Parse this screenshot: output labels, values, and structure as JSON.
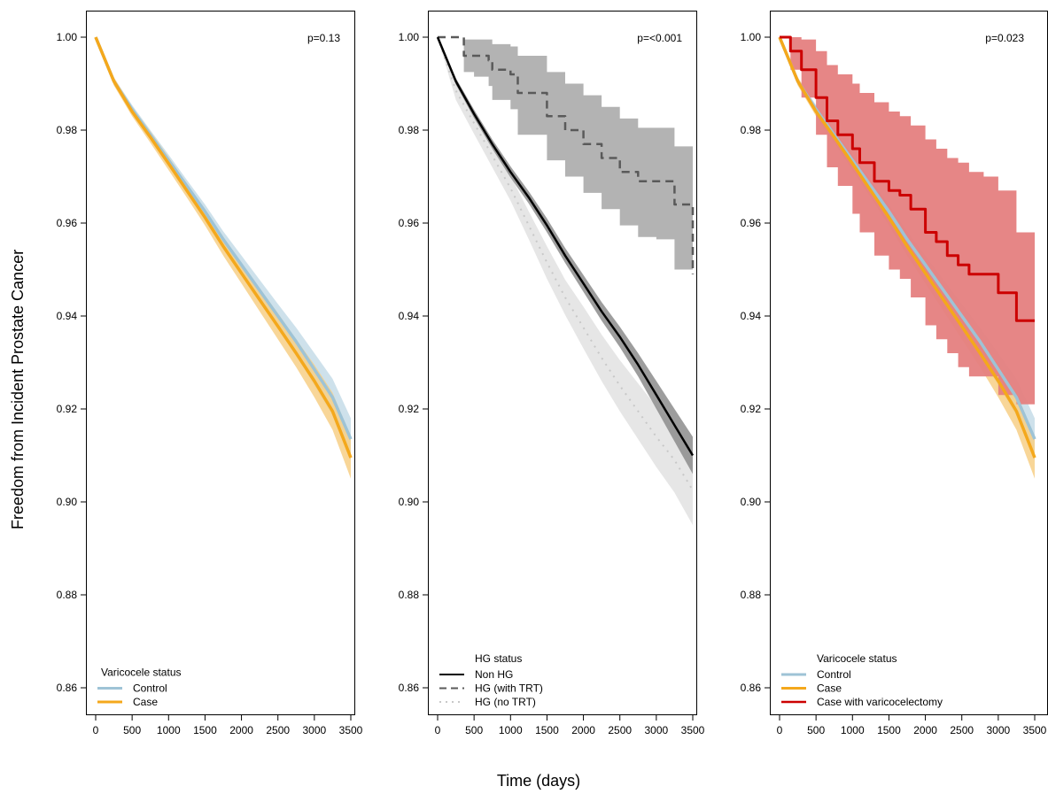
{
  "figure": {
    "ylabel": "Freedom from Incident Prostate Cancer",
    "xlabel": "Time (days)"
  },
  "colors": {
    "control": "#9ec3d6",
    "control_band": "#c5dce7",
    "case": "#f4a81c",
    "case_band": "#f7cf86",
    "non_hg": "#000000",
    "non_hg_band": "#8c8c8c",
    "hg_trt": "#5a5a5a",
    "hg_trt_band": "#a6a6a6",
    "hg_no_trt": "#c8c8c8",
    "hg_no_trt_band": "#e2e2e2",
    "varicocelectomy": "#cc0000",
    "varicocelectomy_band": "#e57f7f"
  },
  "chart_data": [
    {
      "type": "line",
      "annotation": "p=0.13",
      "legend_title": "Varicocele status",
      "legend_position": "bottom-left",
      "xlim": [
        0,
        3500
      ],
      "ylim": [
        0.86,
        1.0
      ],
      "x_ticks": [
        "0",
        "500",
        "1000",
        "1500",
        "2000",
        "2500",
        "3000",
        "3500"
      ],
      "y_ticks": [
        "0.86",
        "0.88",
        "0.90",
        "0.92",
        "0.94",
        "0.96",
        "0.98",
        "1.00"
      ],
      "series": [
        {
          "name": "Control",
          "color_key": "control",
          "dash": "solid",
          "width": 3.5,
          "x": [
            0,
            250,
            500,
            750,
            1000,
            1250,
            1500,
            1750,
            2000,
            2250,
            2500,
            2750,
            3000,
            3250,
            3500
          ],
          "y": [
            1.0,
            0.9905,
            0.9845,
            0.979,
            0.9735,
            0.968,
            0.9625,
            0.9565,
            0.951,
            0.9455,
            0.94,
            0.9345,
            0.9285,
            0.9225,
            0.9135
          ],
          "lower": [
            1.0,
            0.9897,
            0.9836,
            0.978,
            0.9723,
            0.9667,
            0.961,
            0.9548,
            0.949,
            0.9432,
            0.9374,
            0.9315,
            0.925,
            0.9185,
            0.909
          ],
          "upper": [
            1.0,
            0.9913,
            0.9854,
            0.98,
            0.9747,
            0.9693,
            0.964,
            0.9582,
            0.953,
            0.9478,
            0.9426,
            0.9375,
            0.932,
            0.9265,
            0.918
          ]
        },
        {
          "name": "Case",
          "color_key": "case",
          "dash": "solid",
          "width": 3.5,
          "x": [
            0,
            250,
            500,
            750,
            1000,
            1250,
            1500,
            1750,
            2000,
            2250,
            2500,
            2750,
            3000,
            3250,
            3500
          ],
          "y": [
            1.0,
            0.9905,
            0.984,
            0.9785,
            0.9728,
            0.967,
            0.9612,
            0.955,
            0.9492,
            0.9435,
            0.9378,
            0.932,
            0.926,
            0.9195,
            0.9095
          ],
          "lower": [
            1.0,
            0.9896,
            0.983,
            0.9773,
            0.9714,
            0.9655,
            0.9595,
            0.953,
            0.947,
            0.941,
            0.935,
            0.929,
            0.9225,
            0.9155,
            0.905
          ],
          "upper": [
            1.0,
            0.9914,
            0.985,
            0.9797,
            0.9742,
            0.9685,
            0.9629,
            0.957,
            0.9514,
            0.946,
            0.9406,
            0.935,
            0.9295,
            0.9235,
            0.914
          ]
        }
      ]
    },
    {
      "type": "line",
      "annotation": "p=<0.001",
      "legend_title": "HG status",
      "legend_position": "bottom-left",
      "xlim": [
        0,
        3500
      ],
      "ylim": [
        0.86,
        1.0
      ],
      "x_ticks": [
        "0",
        "500",
        "1000",
        "1500",
        "2000",
        "2500",
        "3000",
        "3500"
      ],
      "y_ticks": [
        "0.86",
        "0.88",
        "0.90",
        "0.92",
        "0.94",
        "0.96",
        "0.98",
        "1.00"
      ],
      "series": [
        {
          "name": "HG (no TRT)",
          "color_key": "hg_no_trt",
          "dash": "dotted",
          "width": 2,
          "x": [
            0,
            250,
            500,
            750,
            1000,
            1250,
            1500,
            1750,
            2000,
            2250,
            2500,
            2750,
            3000,
            3250,
            3500
          ],
          "y": [
            1.0,
            0.9885,
            0.9815,
            0.9745,
            0.9675,
            0.9595,
            0.9515,
            0.944,
            0.9375,
            0.931,
            0.925,
            0.9195,
            0.914,
            0.909,
            0.9025
          ],
          "lower": [
            1.0,
            0.9865,
            0.9792,
            0.972,
            0.9648,
            0.9565,
            0.948,
            0.9402,
            0.933,
            0.926,
            0.9195,
            0.9135,
            0.9075,
            0.902,
            0.895
          ],
          "upper": [
            1.0,
            0.9905,
            0.9838,
            0.977,
            0.9702,
            0.9625,
            0.955,
            0.9478,
            0.942,
            0.936,
            0.9305,
            0.9255,
            0.9205,
            0.916,
            0.91
          ]
        },
        {
          "name": "HG (with TRT)",
          "color_key": "hg_trt",
          "dash": "dashed",
          "width": 2.5,
          "x": [
            0,
            300,
            360,
            500,
            700,
            750,
            1000,
            1100,
            1500,
            1750,
            2000,
            2250,
            2500,
            2750,
            3000,
            3250,
            3500
          ],
          "y": [
            1.0,
            1.0,
            0.996,
            0.996,
            0.995,
            0.993,
            0.992,
            0.988,
            0.983,
            0.98,
            0.977,
            0.974,
            0.971,
            0.969,
            0.969,
            0.964,
            0.949
          ],
          "lower": [
            1.0,
            1.0,
            0.9925,
            0.9915,
            0.9895,
            0.9865,
            0.9845,
            0.979,
            0.9735,
            0.97,
            0.9665,
            0.963,
            0.9595,
            0.957,
            0.9565,
            0.95,
            0.9375
          ],
          "upper": [
            1.0,
            1.0,
            0.9995,
            0.9995,
            0.9995,
            0.9985,
            0.998,
            0.996,
            0.9925,
            0.99,
            0.9875,
            0.985,
            0.9825,
            0.9805,
            0.9805,
            0.9765,
            0.9615
          ]
        },
        {
          "name": "Non HG",
          "color_key": "non_hg",
          "dash": "solid",
          "width": 2.5,
          "x": [
            0,
            250,
            500,
            750,
            1000,
            1250,
            1500,
            1750,
            2000,
            2250,
            2500,
            2750,
            3000,
            3250,
            3500
          ],
          "y": [
            1.0,
            0.9905,
            0.9835,
            0.977,
            0.971,
            0.9655,
            0.9595,
            0.953,
            0.947,
            0.941,
            0.9355,
            0.9295,
            0.923,
            0.9165,
            0.91
          ],
          "lower": [
            1.0,
            0.9898,
            0.9826,
            0.976,
            0.9698,
            0.9642,
            0.958,
            0.9514,
            0.9452,
            0.939,
            0.9333,
            0.927,
            0.92,
            0.913,
            0.906
          ],
          "upper": [
            1.0,
            0.9912,
            0.9844,
            0.978,
            0.9722,
            0.9668,
            0.961,
            0.9546,
            0.9488,
            0.943,
            0.9377,
            0.932,
            0.926,
            0.92,
            0.914
          ]
        }
      ]
    },
    {
      "type": "line",
      "annotation": "p=0.023",
      "legend_title": "Varicocele status",
      "legend_position": "bottom-left",
      "xlim": [
        0,
        3500
      ],
      "ylim": [
        0.86,
        1.0
      ],
      "x_ticks": [
        "0",
        "500",
        "1000",
        "1500",
        "2000",
        "2500",
        "3000",
        "3500"
      ],
      "y_ticks": [
        "0.86",
        "0.88",
        "0.90",
        "0.92",
        "0.94",
        "0.96",
        "0.98",
        "1.00"
      ],
      "series": [
        {
          "name": "Control",
          "color_key": "control",
          "dash": "solid",
          "width": 3.5,
          "x": [
            0,
            250,
            500,
            750,
            1000,
            1250,
            1500,
            1750,
            2000,
            2250,
            2500,
            2750,
            3000,
            3250,
            3500
          ],
          "y": [
            1.0,
            0.9905,
            0.9845,
            0.979,
            0.9735,
            0.968,
            0.9625,
            0.9565,
            0.951,
            0.9455,
            0.94,
            0.9345,
            0.9285,
            0.9225,
            0.9135
          ],
          "lower": [
            1.0,
            0.9897,
            0.9836,
            0.978,
            0.9723,
            0.9667,
            0.961,
            0.9548,
            0.949,
            0.9432,
            0.9374,
            0.9315,
            0.925,
            0.9185,
            0.909
          ],
          "upper": [
            1.0,
            0.9913,
            0.9854,
            0.98,
            0.9747,
            0.9693,
            0.964,
            0.9582,
            0.953,
            0.9478,
            0.9426,
            0.9375,
            0.932,
            0.9265,
            0.918
          ]
        },
        {
          "name": "Case",
          "color_key": "case",
          "dash": "solid",
          "width": 3.5,
          "x": [
            0,
            250,
            500,
            750,
            1000,
            1250,
            1500,
            1750,
            2000,
            2250,
            2500,
            2750,
            3000,
            3250,
            3500
          ],
          "y": [
            1.0,
            0.9905,
            0.984,
            0.9785,
            0.9728,
            0.967,
            0.9612,
            0.955,
            0.9492,
            0.9435,
            0.9378,
            0.932,
            0.926,
            0.9195,
            0.9095
          ],
          "lower": [
            1.0,
            0.9896,
            0.983,
            0.9773,
            0.9714,
            0.9655,
            0.9595,
            0.953,
            0.947,
            0.941,
            0.935,
            0.929,
            0.9225,
            0.9155,
            0.905
          ],
          "upper": [
            1.0,
            0.9914,
            0.985,
            0.9797,
            0.9742,
            0.9685,
            0.9629,
            0.957,
            0.9514,
            0.946,
            0.9406,
            0.935,
            0.9295,
            0.9235,
            0.914
          ]
        },
        {
          "name": "Case with varicocelectomy",
          "color_key": "varicocelectomy",
          "dash": "solid",
          "width": 3,
          "x": [
            0,
            150,
            300,
            500,
            650,
            800,
            1000,
            1100,
            1300,
            1500,
            1650,
            1800,
            2000,
            2150,
            2300,
            2450,
            2600,
            2800,
            3000,
            3250,
            3500
          ],
          "y": [
            1.0,
            0.997,
            0.993,
            0.987,
            0.982,
            0.979,
            0.976,
            0.973,
            0.969,
            0.967,
            0.966,
            0.963,
            0.958,
            0.956,
            0.953,
            0.951,
            0.949,
            0.949,
            0.945,
            0.939,
            0.939
          ],
          "lower": [
            1.0,
            0.993,
            0.987,
            0.979,
            0.972,
            0.968,
            0.962,
            0.958,
            0.953,
            0.95,
            0.948,
            0.944,
            0.938,
            0.935,
            0.932,
            0.929,
            0.927,
            0.927,
            0.923,
            0.921,
            0.921
          ],
          "upper": [
            1.0,
            1.0,
            0.9995,
            0.997,
            0.994,
            0.992,
            0.99,
            0.988,
            0.986,
            0.984,
            0.983,
            0.981,
            0.978,
            0.976,
            0.974,
            0.973,
            0.971,
            0.97,
            0.967,
            0.958,
            0.958
          ]
        }
      ]
    }
  ]
}
